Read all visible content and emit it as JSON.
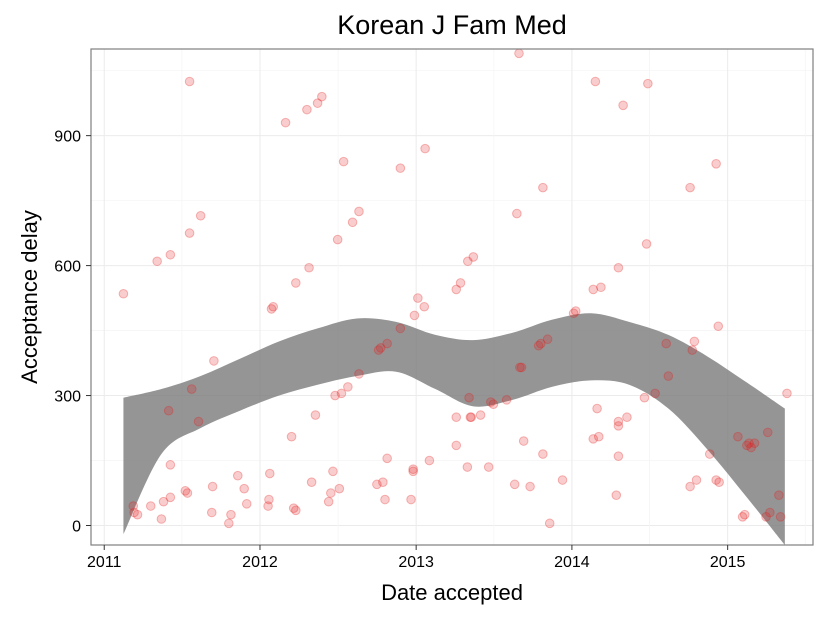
{
  "chart_data": {
    "type": "scatter",
    "title": "Korean J Fam Med",
    "xlabel": "Date accepted",
    "ylabel": "Acceptance delay",
    "x_ticks": [
      "2011",
      "2012",
      "2013",
      "2014",
      "2015"
    ],
    "y_ticks": [
      "0",
      "300",
      "600",
      "900"
    ],
    "xlim": [
      "2010-12-01",
      "2015-07-20"
    ],
    "ylim": [
      -45,
      1100
    ],
    "grid": true,
    "legend": "none",
    "colors": {
      "points": "#e41a1c",
      "band": "#7a7a7a",
      "grid": "#ebebeb",
      "border": "#7f7f7f"
    },
    "smooth_band": {
      "x": [
        "2011-02-15",
        "2011-05-15",
        "2011-08-15",
        "2011-11-15",
        "2012-02-15",
        "2012-05-15",
        "2012-08-15",
        "2012-11-15",
        "2013-02-15",
        "2013-05-15",
        "2013-08-15",
        "2013-11-15",
        "2014-02-15",
        "2014-05-15",
        "2014-08-15",
        "2014-11-15",
        "2015-02-15",
        "2015-05-15"
      ],
      "lower": [
        -20,
        165,
        225,
        265,
        300,
        325,
        345,
        355,
        315,
        275,
        290,
        320,
        335,
        325,
        270,
        175,
        65,
        -45
      ],
      "upper": [
        295,
        315,
        345,
        385,
        425,
        455,
        478,
        470,
        440,
        428,
        445,
        475,
        490,
        470,
        440,
        390,
        330,
        270
      ]
    },
    "points": [
      {
        "x": "2011-02-15",
        "y": 535
      },
      {
        "x": "2011-03-10",
        "y": 45
      },
      {
        "x": "2011-03-12",
        "y": 30
      },
      {
        "x": "2011-03-20",
        "y": 25
      },
      {
        "x": "2011-04-20",
        "y": 45
      },
      {
        "x": "2011-05-05",
        "y": 610
      },
      {
        "x": "2011-05-15",
        "y": 15
      },
      {
        "x": "2011-05-20",
        "y": 55
      },
      {
        "x": "2011-06-01",
        "y": 265
      },
      {
        "x": "2011-06-05",
        "y": 65
      },
      {
        "x": "2011-06-05",
        "y": 140
      },
      {
        "x": "2011-06-05",
        "y": 625
      },
      {
        "x": "2011-07-15",
        "y": 75
      },
      {
        "x": "2011-07-10",
        "y": 80
      },
      {
        "x": "2011-07-20",
        "y": 1025
      },
      {
        "x": "2011-07-25",
        "y": 315
      },
      {
        "x": "2011-07-20",
        "y": 675
      },
      {
        "x": "2011-08-10",
        "y": 240
      },
      {
        "x": "2011-08-15",
        "y": 715
      },
      {
        "x": "2011-09-10",
        "y": 30
      },
      {
        "x": "2011-09-12",
        "y": 90
      },
      {
        "x": "2011-09-15",
        "y": 380
      },
      {
        "x": "2011-10-20",
        "y": 5
      },
      {
        "x": "2011-10-25",
        "y": 25
      },
      {
        "x": "2011-11-10",
        "y": 115
      },
      {
        "x": "2011-11-25",
        "y": 85
      },
      {
        "x": "2011-12-01",
        "y": 50
      },
      {
        "x": "2012-01-20",
        "y": 45
      },
      {
        "x": "2012-01-22",
        "y": 60
      },
      {
        "x": "2012-01-24",
        "y": 120
      },
      {
        "x": "2012-01-28",
        "y": 500
      },
      {
        "x": "2012-02-01",
        "y": 505
      },
      {
        "x": "2012-03-01",
        "y": 930
      },
      {
        "x": "2012-03-15",
        "y": 205
      },
      {
        "x": "2012-03-20",
        "y": 40
      },
      {
        "x": "2012-03-25",
        "y": 35
      },
      {
        "x": "2012-03-25",
        "y": 560
      },
      {
        "x": "2012-04-20",
        "y": 960
      },
      {
        "x": "2012-04-25",
        "y": 595
      },
      {
        "x": "2012-05-01",
        "y": 100
      },
      {
        "x": "2012-05-15",
        "y": 975
      },
      {
        "x": "2012-05-10",
        "y": 255
      },
      {
        "x": "2012-05-25",
        "y": 990
      },
      {
        "x": "2012-06-10",
        "y": 55
      },
      {
        "x": "2012-06-15",
        "y": 75
      },
      {
        "x": "2012-06-20",
        "y": 125
      },
      {
        "x": "2012-06-25",
        "y": 300
      },
      {
        "x": "2012-07-01",
        "y": 660
      },
      {
        "x": "2012-07-05",
        "y": 85
      },
      {
        "x": "2012-07-10",
        "y": 305
      },
      {
        "x": "2012-07-15",
        "y": 840
      },
      {
        "x": "2012-07-25",
        "y": 320
      },
      {
        "x": "2012-08-05",
        "y": 700
      },
      {
        "x": "2012-08-20",
        "y": 350
      },
      {
        "x": "2012-08-20",
        "y": 725
      },
      {
        "x": "2012-10-01",
        "y": 95
      },
      {
        "x": "2012-10-05",
        "y": 405
      },
      {
        "x": "2012-10-10",
        "y": 410
      },
      {
        "x": "2012-10-15",
        "y": 100
      },
      {
        "x": "2012-10-20",
        "y": 60
      },
      {
        "x": "2012-10-25",
        "y": 155
      },
      {
        "x": "2012-10-25",
        "y": 420
      },
      {
        "x": "2012-11-25",
        "y": 455
      },
      {
        "x": "2012-11-25",
        "y": 825
      },
      {
        "x": "2012-12-20",
        "y": 60
      },
      {
        "x": "2012-12-25",
        "y": 130
      },
      {
        "x": "2012-12-25",
        "y": 125
      },
      {
        "x": "2012-12-28",
        "y": 485
      },
      {
        "x": "2013-01-05",
        "y": 525
      },
      {
        "x": "2013-01-20",
        "y": 505
      },
      {
        "x": "2013-01-22",
        "y": 870
      },
      {
        "x": "2013-02-01",
        "y": 150
      },
      {
        "x": "2013-04-05",
        "y": 185
      },
      {
        "x": "2013-04-05",
        "y": 250
      },
      {
        "x": "2013-04-05",
        "y": 545
      },
      {
        "x": "2013-04-15",
        "y": 560
      },
      {
        "x": "2013-05-01",
        "y": 135
      },
      {
        "x": "2013-05-02",
        "y": 610
      },
      {
        "x": "2013-05-05",
        "y": 295
      },
      {
        "x": "2013-05-08",
        "y": 250
      },
      {
        "x": "2013-05-10",
        "y": 250
      },
      {
        "x": "2013-05-15",
        "y": 620
      },
      {
        "x": "2013-06-01",
        "y": 255
      },
      {
        "x": "2013-06-20",
        "y": 135
      },
      {
        "x": "2013-06-25",
        "y": 285
      },
      {
        "x": "2013-07-01",
        "y": 280
      },
      {
        "x": "2013-08-01",
        "y": 290
      },
      {
        "x": "2013-08-20",
        "y": 95
      },
      {
        "x": "2013-08-25",
        "y": 720
      },
      {
        "x": "2013-08-30",
        "y": 1090
      },
      {
        "x": "2013-09-01",
        "y": 365
      },
      {
        "x": "2013-09-05",
        "y": 365
      },
      {
        "x": "2013-09-10",
        "y": 195
      },
      {
        "x": "2013-09-25",
        "y": 90
      },
      {
        "x": "2013-10-15",
        "y": 415
      },
      {
        "x": "2013-10-20",
        "y": 420
      },
      {
        "x": "2013-10-25",
        "y": 165
      },
      {
        "x": "2013-10-25",
        "y": 780
      },
      {
        "x": "2013-11-05",
        "y": 430
      },
      {
        "x": "2013-11-10",
        "y": 5
      },
      {
        "x": "2013-12-10",
        "y": 105
      },
      {
        "x": "2014-01-05",
        "y": 490
      },
      {
        "x": "2014-01-10",
        "y": 495
      },
      {
        "x": "2014-02-20",
        "y": 200
      },
      {
        "x": "2014-02-20",
        "y": 545
      },
      {
        "x": "2014-02-25",
        "y": 1025
      },
      {
        "x": "2014-03-01",
        "y": 270
      },
      {
        "x": "2014-03-05",
        "y": 205
      },
      {
        "x": "2014-03-10",
        "y": 550
      },
      {
        "x": "2014-04-15",
        "y": 70
      },
      {
        "x": "2014-04-20",
        "y": 230
      },
      {
        "x": "2014-04-20",
        "y": 240
      },
      {
        "x": "2014-04-20",
        "y": 160
      },
      {
        "x": "2014-04-20",
        "y": 595
      },
      {
        "x": "2014-05-01",
        "y": 970
      },
      {
        "x": "2014-05-10",
        "y": 250
      },
      {
        "x": "2014-06-20",
        "y": 295
      },
      {
        "x": "2014-06-25",
        "y": 650
      },
      {
        "x": "2014-06-28",
        "y": 1020
      },
      {
        "x": "2014-07-15",
        "y": 305
      },
      {
        "x": "2014-08-10",
        "y": 420
      },
      {
        "x": "2014-08-15",
        "y": 345
      },
      {
        "x": "2014-10-05",
        "y": 780
      },
      {
        "x": "2014-10-05",
        "y": 90
      },
      {
        "x": "2014-10-10",
        "y": 405
      },
      {
        "x": "2014-10-15",
        "y": 425
      },
      {
        "x": "2014-10-20",
        "y": 105
      },
      {
        "x": "2014-11-20",
        "y": 165
      },
      {
        "x": "2014-12-05",
        "y": 105
      },
      {
        "x": "2014-12-05",
        "y": 835
      },
      {
        "x": "2014-12-10",
        "y": 460
      },
      {
        "x": "2014-12-12",
        "y": 100
      },
      {
        "x": "2015-01-25",
        "y": 205
      },
      {
        "x": "2015-02-05",
        "y": 20
      },
      {
        "x": "2015-02-10",
        "y": 25
      },
      {
        "x": "2015-02-15",
        "y": 185
      },
      {
        "x": "2015-02-20",
        "y": 190
      },
      {
        "x": "2015-02-25",
        "y": 180
      },
      {
        "x": "2015-03-05",
        "y": 190
      },
      {
        "x": "2015-04-01",
        "y": 20
      },
      {
        "x": "2015-04-05",
        "y": 215
      },
      {
        "x": "2015-04-10",
        "y": 30
      },
      {
        "x": "2015-05-01",
        "y": 70
      },
      {
        "x": "2015-05-05",
        "y": 20
      },
      {
        "x": "2015-05-20",
        "y": 305
      }
    ]
  }
}
